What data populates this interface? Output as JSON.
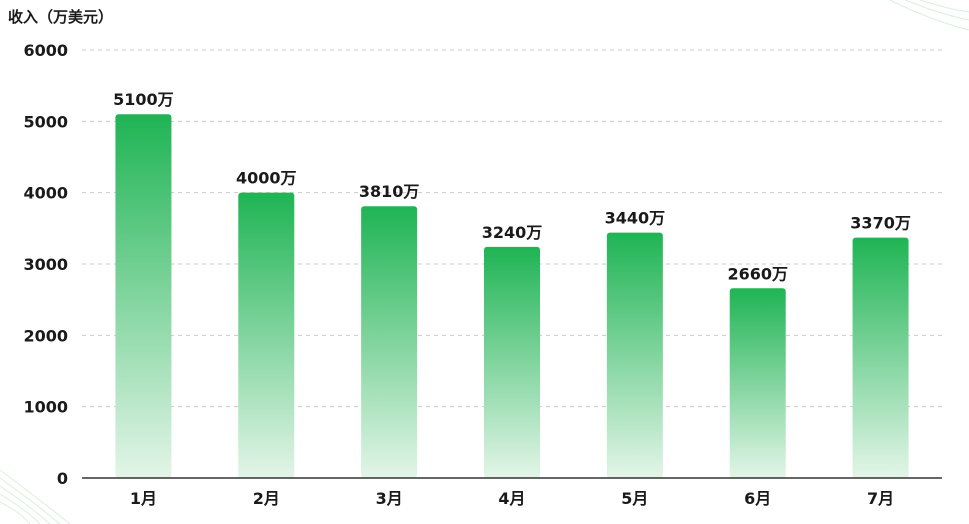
{
  "chart_data": {
    "type": "bar",
    "ylabel": "收入（万美元）",
    "xlabel": "",
    "title": "",
    "categories": [
      "1月",
      "2月",
      "3月",
      "4月",
      "5月",
      "6月",
      "7月"
    ],
    "values": [
      5100,
      4000,
      3810,
      3240,
      3440,
      2660,
      3370
    ],
    "data_labels": [
      "5100万",
      "4000万",
      "3810万",
      "3240万",
      "3440万",
      "2660万",
      "3370万"
    ],
    "ylim": [
      0,
      6000
    ],
    "yticks": [
      0,
      1000,
      2000,
      3000,
      4000,
      5000,
      6000
    ],
    "grid": true,
    "legend": "none",
    "colors": {
      "bar_top": "#1fb454",
      "bar_bottom": "#e3f5e8",
      "grid": "#c9c9c9",
      "text": "#1a1a1a",
      "axis": "#333333"
    }
  }
}
